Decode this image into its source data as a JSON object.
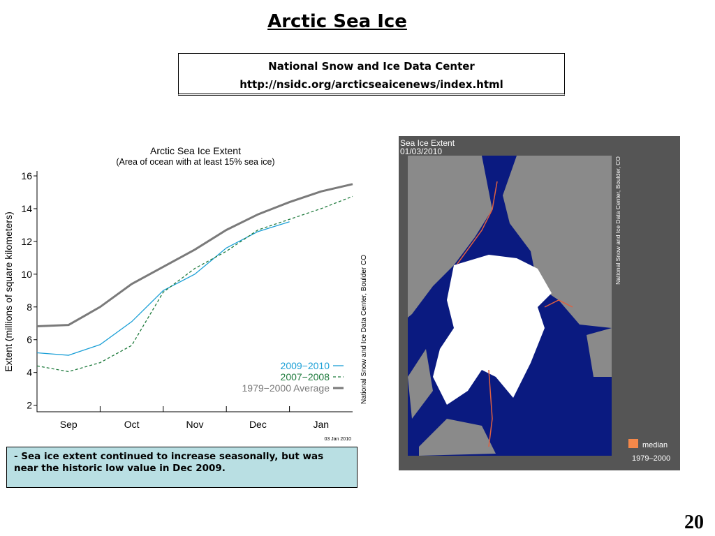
{
  "header": {
    "title": "Arctic Sea Ice"
  },
  "source": {
    "name": "National Snow and Ice Data Center",
    "url": "http://nsidc.org/arcticseaicenews/index.html"
  },
  "chart_data": {
    "type": "line",
    "title": "Arctic Sea Ice Extent",
    "subtitle": "(Area of ocean with at least 15% sea ice)",
    "y_label": "Extent (millions of square kilometers)",
    "credit": "National Snow and Ice Data Center, Boulder CO",
    "date": "03 Jan 2010",
    "categories": [
      null,
      "Sep",
      null,
      "Oct",
      null,
      "Nov",
      null,
      "Dec",
      null,
      "Jan",
      null
    ],
    "series": [
      {
        "name": "2009−2010",
        "color": "#1a9fd6",
        "dash": "solid",
        "width": 1.3,
        "values": [
          5.2,
          5.05,
          5.7,
          7.1,
          9.0,
          10.0,
          11.6,
          12.6,
          13.2,
          null,
          null
        ]
      },
      {
        "name": "2007−2008",
        "color": "#1e7a3c",
        "dash": "dashed",
        "width": 1.3,
        "values": [
          4.4,
          4.05,
          4.6,
          5.65,
          8.9,
          10.35,
          11.4,
          12.7,
          13.35,
          14.0,
          14.75
        ]
      },
      {
        "name": "1979−2000 Average",
        "color": "#7a7a7a",
        "dash": "solid",
        "width": 3,
        "values": [
          6.82,
          6.9,
          8.0,
          9.4,
          10.45,
          11.5,
          12.7,
          13.65,
          14.4,
          15.05,
          15.5
        ]
      }
    ],
    "ylim": [
      1.6,
      16.3
    ],
    "yticks": [
      2,
      4,
      6,
      8,
      10,
      12,
      14,
      16
    ],
    "legend": "lower right",
    "grid": false
  },
  "map": {
    "title": "Sea Ice Extent",
    "date": "01/03/2010",
    "credit": "National Snow and Ice Data Center, Boulder, CO",
    "legend": "median",
    "legend_period": "1979–2000"
  },
  "caption": "- Sea ice extent continued to increase seasonally, but was near the historic low value in Dec 2009.",
  "page_number": "20"
}
